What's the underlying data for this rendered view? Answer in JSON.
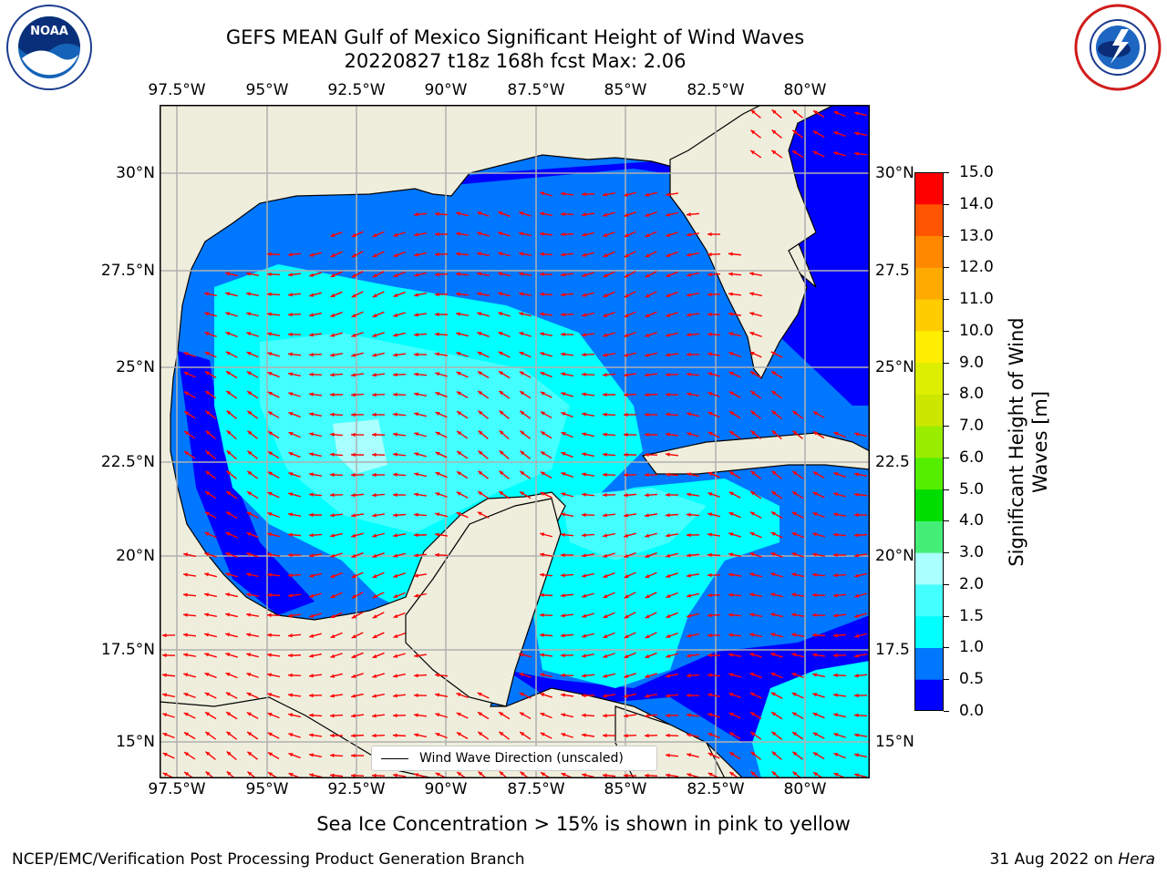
{
  "title": {
    "line1": "GEFS MEAN Gulf of Mexico Significant Height of Wind Waves",
    "line2": "20220827 t18z 168h fcst   Max: 2.06"
  },
  "logos": {
    "left": "NOAA",
    "right": "NATIONAL WEATHER SERVICE"
  },
  "map": {
    "lon_labels": [
      "97.5°W",
      "95°W",
      "92.5°W",
      "90°W",
      "87.5°W",
      "85°W",
      "82.5°W",
      "80°W"
    ],
    "lat_labels_left": [
      "30°N",
      "27.5°N",
      "25°N",
      "22.5°N",
      "20°N",
      "17.5°N",
      "15°N"
    ],
    "lat_labels_right": [
      "30°N",
      "27.5",
      "25°N",
      "22.5",
      "20°N",
      "17.5",
      "15°N"
    ],
    "lon_range": [
      -98,
      -78.2
    ],
    "lat_range": [
      14.1,
      31.8
    ],
    "legend_label": "Wind Wave Direction (unscaled)"
  },
  "colorbar": {
    "ticks": [
      "15.0",
      "14.0",
      "13.0",
      "12.0",
      "11.0",
      "10.0",
      "9.0",
      "8.0",
      "7.0",
      "6.0",
      "5.0",
      "4.0",
      "3.0",
      "2.0",
      "1.5",
      "1.0",
      "0.5",
      "0.0"
    ],
    "colors": [
      "#0000ff",
      "#0077ff",
      "#00ffff",
      "#44ffff",
      "#aaffff",
      "#44ee77",
      "#00dd00",
      "#55ee00",
      "#99ee00",
      "#cce600",
      "#ddee00",
      "#ffee00",
      "#ffcc00",
      "#ffaa00",
      "#ff8800",
      "#ff5500",
      "#ff0000"
    ],
    "label": "Significant Height of Wind\nWaves [m]"
  },
  "subtitle": "Sea Ice Concentration > 15% is shown in pink to yellow",
  "footer": {
    "left": "NCEP/EMC/Verification Post Processing Product Generation Branch",
    "right_date": "31 Aug 2022 on ",
    "right_host": "Hera"
  },
  "colors": {
    "land": "#efeedd",
    "arrow": "#ff0000",
    "grid": "#b0b0b0"
  }
}
